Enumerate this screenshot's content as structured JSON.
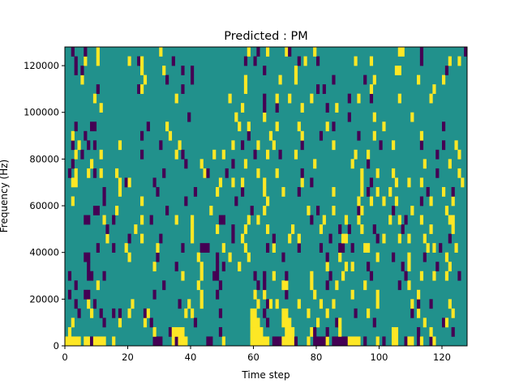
{
  "chart_data": {
    "type": "heatmap",
    "title": "Predicted : PM",
    "xlabel": "Time step",
    "ylabel": "Frequency (Hz)",
    "xlim": [
      0,
      128
    ],
    "ylim": [
      0,
      128000
    ],
    "x_ticks": [
      "0",
      "20",
      "40",
      "60",
      "80",
      "100",
      "120"
    ],
    "x_tick_values": [
      0,
      20,
      40,
      60,
      80,
      100,
      120
    ],
    "y_ticks": [
      "0",
      "20000",
      "40000",
      "60000",
      "80000",
      "100000",
      "120000"
    ],
    "y_tick_values": [
      0,
      20000,
      40000,
      60000,
      80000,
      100000,
      120000
    ],
    "n_rows": 32,
    "n_cols": 128,
    "row_height_hz": 4000,
    "colors": {
      "background": "#21918c",
      "y": "#fde725",
      "p": "#440154"
    },
    "legend_note": "background cells = middle value (teal); y = high (yellow); p = low (purple); rows listed bottom to top",
    "rows": [
      "y0-4 y6-7 p8 y9-12 y15 p28-30 y34 p35 y36-38 p45-46 y50 y59-64 p66-68 y69-72 p73 y77 p79-82 y83 p85-89 y90-93 p95 y99 p101 y104-105 p108 y109-110 p112 y113 p116 y117",
      "y1 y28 p33 y34 y35-37 p49 y59-62 y70-72 y78 p79 p83 y87 y104-105 p112 y116 p123",
      "y2 p12 y17 y25 p27 p41 y59-61 p64 y69-71 y80 p86 y87 p98 y114 p120 y121",
      "p4 y8 p11 p15 p17 y20 p25 y26 y38 y40 p49 y59-60 p63 y69-70 y77 y83 p92 y96 p110 y112 y123",
      "p3 y7 p9 y21 p36 y39 y43 y61 p64 y65 y67 y74 y81 y85 y99 y110 p112 p116 y122",
      "p1 p6 p7 p28 y43 p48 y60 y63 p70 y79 y91 y99 y112",
      "p3 y10 p31 y42 p49 p61 p63 y69-70 y78 p83 y86 y95 p106 y109",
      "p1 p7-8 p12 y37 y43 p47-48 p60 p63 y66 p70 y78 p84 y88 p97 p108 y113 y117 y121 p125",
      "p7 y28 p35 y43 p48 p50 y55 y83 y89 y91 p96 p107 y109 p118 y122",
      "p6-7 y20 p29 y42 p48 y52 y58 p69 p83 y87 y99 p104 y109 p114 y121",
      "p10 p15 y19 y29 p37 p43-45 y50 y57 p64 y66 p74 p81 p87-88 p91 y95-96 y115 y117 p119 y124",
      "y13 p20 y24 p30 y40 p53 y56 p66 y71 y74 p84 y88-89 p99 y101 y106 y109 y114 p122",
      "p13 y22 y40 y48 p53 y57 y64 y72 y81 p87 p90 y94 p98 p107 y116 y123",
      "p6-7 y12 p15 y24 p27 y35 y40 p49-50 y58 y61 p78 y82 y89 y93 y103 y106 p108 y113 y122-123",
      "p9-10 y16 p32 y46 p59 y63 y77 p80 y85 p93 y94 p104 y110 y121",
      "y2 p12 y24 p38 p54 y64 y93 y97 y101 y105 p113 y116 y123",
      "p12 y17 p29 p41 y48 p56 y63 y69 p74 y85 y94 p96 y99 y103 p115 y120 p123",
      "y2-3 y17 p19 y20 p28 y49 y53 y56 y63 y75 p78 y94 p97 y105 y109 y113 y126",
      "p1 y3 y7 p9 y11 y16 p31 y44 p45 p51 y61 y67 p75 y94 y99 y104 p118 y125",
      "p2 y8 p38 y43 p53 y57 y79 y91 p96 y114 y122",
      "y3 p5 y11 p24 y35 p37 y47 y50 p60 y64 p68 y73 y92 y96 p118 y125",
      "p2 y4 p7 p9 y17 p30 y36 y53 p56 y61 y66 p75 y85 p100 y104 p113 p120 y124",
      "y2 p6 p24 y33 p58 y65 y75 p81 p93 y98 y113",
      "p3 p8-9 p26 y32 y55 y58 y67 y74 y83 p85 y101 p120",
      "p39 y54 y63 p90 y98 y110",
      "y11 y56 p63 p67 y75 p83 y86",
      "y9 y35 y52 p63 y67 y71 y78 p90 y93 p97 y106 y116",
      "p10 p23 y24 p37 y57 p80 p82 y97 y117",
      "y5 y25 p32 p40 y57 y68 y73 p85 p95 y98 y112 y120",
      "p3 p5 y24 y31 p37 p40 p63 y73 y105-106 p121",
      "p3 y6 y10 y20 p23 y24 p34 p57 p60 p74 y76 p80 y92 y97 p113 y122 y125",
      "p2 p6 y10 y30 y58 p61 y64 y70 p71 y79 y106-107 p113 p127"
    ]
  }
}
